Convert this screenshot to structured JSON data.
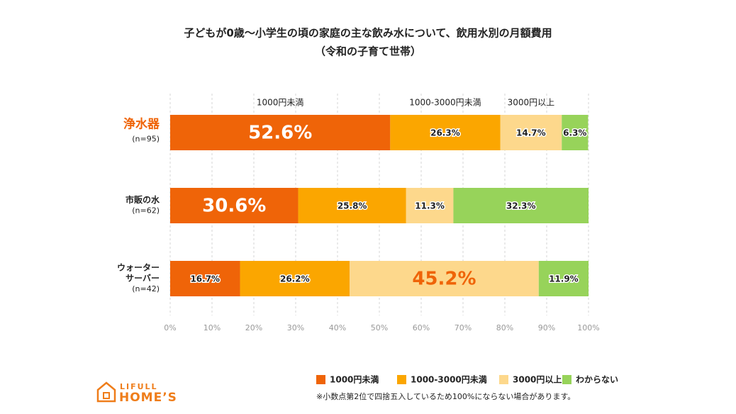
{
  "chart_data": {
    "type": "stacked_bar_h",
    "title": "子どもが0歳〜小学生の頃の家庭の主な飲み水について、飲用水別の月額費用",
    "subtitle": "（令和の子育て世帯）",
    "categories": [
      [
        "浄水器",
        "(n=95)"
      ],
      [
        "市販の水",
        "(n=62)"
      ],
      [
        "ウォーター",
        "サーバー",
        "(n=42)"
      ]
    ],
    "highlight_category": 0,
    "series": [
      {
        "name": "1000円未満",
        "color": "#ef6408",
        "values": [
          52.6,
          30.6,
          16.7
        ],
        "value_labels": [
          "52.6%",
          "30.6%",
          "16.7%"
        ],
        "emphasized": [
          true,
          true,
          false
        ]
      },
      {
        "name": "1000-3000円未満",
        "color": "#fba600",
        "values": [
          26.3,
          25.8,
          26.2
        ],
        "value_labels": [
          "26.3%",
          "25.8%",
          "26.2%"
        ],
        "emphasized": [
          false,
          false,
          false
        ]
      },
      {
        "name": "3000円以上",
        "color": "#fdd88c",
        "values": [
          14.7,
          11.3,
          45.2
        ],
        "value_labels": [
          "14.7%",
          "11.3%",
          "45.2%"
        ],
        "emphasized": [
          false,
          false,
          true
        ]
      },
      {
        "name": "わからない",
        "color": "#97d35a",
        "values": [
          6.3,
          32.3,
          11.9
        ],
        "value_labels": [
          "6.3%",
          "32.3%",
          "11.9%"
        ],
        "emphasized": [
          false,
          false,
          false
        ]
      }
    ],
    "xlim": [
      0,
      100
    ],
    "xticks": [
      {
        "value": 0,
        "label": "0%"
      },
      {
        "value": 10,
        "label": "10%"
      },
      {
        "value": 20,
        "label": "20%"
      },
      {
        "value": 30,
        "label": "30%"
      },
      {
        "value": 40,
        "label": "40%"
      },
      {
        "value": 50,
        "label": "50%"
      },
      {
        "value": 60,
        "label": "60%"
      },
      {
        "value": 70,
        "label": "70%"
      },
      {
        "value": 80,
        "label": "80%"
      },
      {
        "value": 90,
        "label": "90%"
      },
      {
        "value": 100,
        "label": "100%"
      }
    ],
    "grid": true,
    "legend": "bottom",
    "footnote": "※小数点第2位で四捨五入しているため100%にならない場合があります。",
    "logo": [
      "LIFULL",
      "HOME’S"
    ]
  }
}
